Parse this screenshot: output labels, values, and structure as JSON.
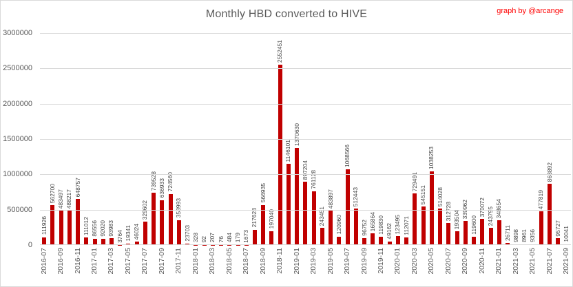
{
  "chart": {
    "title": "Monthly HBD converted to  HIVE",
    "credit": "graph by @arcange"
  },
  "chart_data": {
    "type": "bar",
    "title": "Monthly HBD converted to  HIVE",
    "credit": "graph by @arcange",
    "bar_color": "#c00000",
    "grid": true,
    "legend": "none",
    "ylim": [
      0,
      3000000
    ],
    "yticks": [
      0,
      500000,
      1000000,
      1500000,
      2000000,
      2500000,
      3000000
    ],
    "x_label_every": 2,
    "categories": [
      "2016-07",
      "2016-08",
      "2016-09",
      "2016-10",
      "2016-11",
      "2016-12",
      "2017-01",
      "2017-02",
      "2017-03",
      "2017-04",
      "2017-05",
      "2017-06",
      "2017-07",
      "2017-08",
      "2017-09",
      "2017-10",
      "2017-11",
      "2017-12",
      "2018-01",
      "2018-02",
      "2018-03",
      "2018-04",
      "2018-05",
      "2018-06",
      "2018-07",
      "2018-08",
      "2018-09",
      "2018-10",
      "2018-11",
      "2018-12",
      "2019-01",
      "2019-02",
      "2019-03",
      "2019-04",
      "2019-05",
      "2019-06",
      "2019-07",
      "2019-08",
      "2019-09",
      "2019-10",
      "2019-11",
      "2019-12",
      "2020-01",
      "2020-02",
      "2020-03",
      "2020-04",
      "2020-05",
      "2020-06",
      "2020-07",
      "2020-08",
      "2020-09",
      "2020-10",
      "2020-11",
      "2020-12",
      "2021-01",
      "2021-02",
      "2021-03",
      "2021-04",
      "2021-05",
      "2021-06",
      "2021-07",
      "2021-08",
      "2021-09"
    ],
    "values": [
      111926,
      562700,
      483497,
      488217,
      648757,
      111012,
      86556,
      92020,
      93983,
      3764,
      19341,
      46024,
      329602,
      739528,
      636933,
      724560,
      353993,
      23703,
      328,
      92,
      207,
      76,
      484,
      179,
      1673,
      217628,
      566935,
      197040,
      2552451,
      1146101,
      1370630,
      897204,
      761128,
      243451,
      483897,
      120960,
      1068566,
      512443,
      96752,
      165864,
      119830,
      49162,
      123495,
      112071,
      729491,
      545151,
      1038253,
      514028,
      312728,
      193504,
      339962,
      119600,
      370072,
      243795,
      348654,
      26711,
      9898,
      8961,
      9356,
      477819,
      863892,
      95727,
      10041
    ]
  }
}
